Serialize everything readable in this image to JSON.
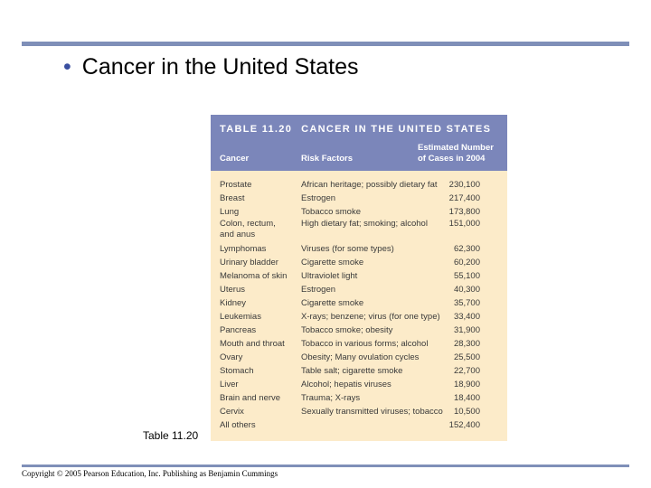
{
  "slide": {
    "bullet": "•",
    "title": "Cancer in the United States",
    "table_label": "Table 11.20",
    "copyright": "Copyright © 2005 Pearson Education, Inc. Publishing as Benjamin Cummings"
  },
  "table": {
    "caption_number": "TABLE 11.20",
    "caption_title": "CANCER IN THE UNITED STATES",
    "headers": {
      "cancer": "Cancer",
      "risk": "Risk Factors",
      "cases": "Estimated Number\nof Cases in 2004"
    },
    "rows": [
      {
        "cancer": "Prostate",
        "risk": "African heritage; possibly dietary fat",
        "cases": "230,100"
      },
      {
        "cancer": "Breast",
        "risk": "Estrogen",
        "cases": "217,400"
      },
      {
        "cancer": "Lung",
        "risk": "Tobacco smoke",
        "cases": "173,800"
      },
      {
        "cancer": "Colon, rectum,\nand anus",
        "risk": "High dietary fat; smoking; alcohol",
        "cases": "151,000"
      },
      {
        "cancer": "Lymphomas",
        "risk": "Viruses (for some types)",
        "cases": "62,300"
      },
      {
        "cancer": "Urinary bladder",
        "risk": "Cigarette smoke",
        "cases": "60,200"
      },
      {
        "cancer": "Melanoma of skin",
        "risk": "Ultraviolet light",
        "cases": "55,100"
      },
      {
        "cancer": "Uterus",
        "risk": "Estrogen",
        "cases": "40,300"
      },
      {
        "cancer": "Kidney",
        "risk": "Cigarette smoke",
        "cases": "35,700"
      },
      {
        "cancer": "Leukemias",
        "risk": "X-rays; benzene; virus (for one type)",
        "cases": "33,400"
      },
      {
        "cancer": "Pancreas",
        "risk": "Tobacco smoke; obesity",
        "cases": "31,900"
      },
      {
        "cancer": "Mouth and throat",
        "risk": "Tobacco in various forms; alcohol",
        "cases": "28,300"
      },
      {
        "cancer": "Ovary",
        "risk": "Obesity; Many ovulation cycles",
        "cases": "25,500"
      },
      {
        "cancer": "Stomach",
        "risk": "Table salt; cigarette smoke",
        "cases": "22,700"
      },
      {
        "cancer": "Liver",
        "risk": "Alcohol; hepatis viruses",
        "cases": "18,900"
      },
      {
        "cancer": "Brain and nerve",
        "risk": "Trauma; X-rays",
        "cases": "18,400"
      },
      {
        "cancer": "Cervix",
        "risk": "Sexually transmitted viruses; tobacco",
        "cases": "10,500"
      },
      {
        "cancer": "All others",
        "risk": "",
        "cases": "152,400"
      }
    ]
  },
  "colors": {
    "rule": "#7f8fb8",
    "header_bg": "#7b86ba",
    "table_bg": "#fcebc9",
    "bullet": "#3a4fa0"
  }
}
